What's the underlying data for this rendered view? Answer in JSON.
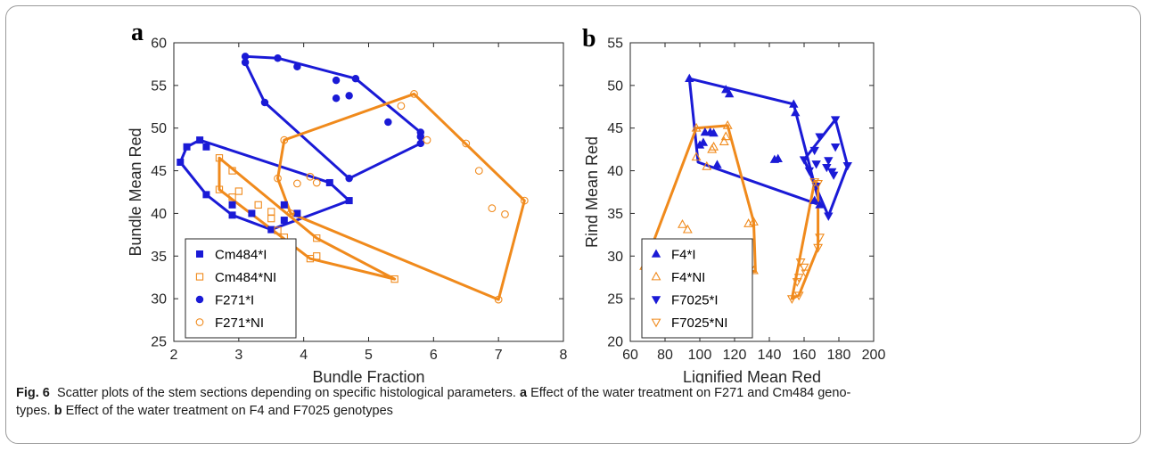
{
  "colors": {
    "blue": "#1a1ad6",
    "orange": "#f08a1c"
  },
  "panels": [
    {
      "letter": "a",
      "xlabel": "Bundle Fraction",
      "ylabel": "Bundle Mean Red",
      "xlim": [
        2,
        8
      ],
      "ylim": [
        25,
        60
      ],
      "xticks": [
        2,
        3,
        4,
        5,
        6,
        7,
        8
      ],
      "yticks": [
        25,
        30,
        35,
        40,
        45,
        50,
        55,
        60
      ],
      "legend": [
        "Cm484*I",
        "Cm484*NI",
        "F271*I",
        "F271*NI"
      ]
    },
    {
      "letter": "b",
      "xlabel": "Lignified Mean Red",
      "ylabel": "Rind Mean Red",
      "xlim": [
        60,
        200
      ],
      "ylim": [
        20,
        55
      ],
      "xticks": [
        60,
        80,
        100,
        120,
        140,
        160,
        180,
        200
      ],
      "yticks": [
        20,
        25,
        30,
        35,
        40,
        45,
        50,
        55
      ],
      "legend": [
        "F4*I",
        "F4*NI",
        "F7025*I",
        "F7025*NI"
      ]
    }
  ],
  "chart_data": [
    {
      "type": "scatter",
      "title": "",
      "xlabel": "Bundle Fraction",
      "ylabel": "Bundle Mean Red",
      "xlim": [
        2,
        8
      ],
      "ylim": [
        25,
        60
      ],
      "grid": false,
      "legend_position": "bottom-left",
      "series": [
        {
          "name": "Cm484*I",
          "color": "blue",
          "marker": "square",
          "filled": true,
          "points": [
            [
              2.1,
              46
            ],
            [
              2.2,
              47.8
            ],
            [
              2.4,
              48.6
            ],
            [
              2.5,
              47.8
            ],
            [
              2.5,
              42.2
            ],
            [
              2.9,
              39.8
            ],
            [
              2.9,
              41
            ],
            [
              3.2,
              40
            ],
            [
              3.5,
              38.1
            ],
            [
              3.7,
              39.2
            ],
            [
              3.7,
              41
            ],
            [
              3.9,
              40
            ],
            [
              4.4,
              43.6
            ],
            [
              4.7,
              41.5
            ]
          ],
          "hull": [
            [
              2.1,
              46
            ],
            [
              2.2,
              47.8
            ],
            [
              2.4,
              48.6
            ],
            [
              4.4,
              43.6
            ],
            [
              4.7,
              41.5
            ],
            [
              3.5,
              38.1
            ],
            [
              2.9,
              39.8
            ],
            [
              2.5,
              42.2
            ]
          ]
        },
        {
          "name": "Cm484*NI",
          "color": "orange",
          "marker": "square",
          "filled": false,
          "points": [
            [
              2.7,
              46.5
            ],
            [
              2.7,
              42.8
            ],
            [
              2.9,
              45
            ],
            [
              2.9,
              41.9
            ],
            [
              3.0,
              42.6
            ],
            [
              3.3,
              41
            ],
            [
              3.5,
              40.2
            ],
            [
              3.5,
              39.4
            ],
            [
              3.6,
              38
            ],
            [
              3.7,
              37.2
            ],
            [
              4.1,
              34.7
            ],
            [
              4.2,
              35
            ],
            [
              4.2,
              37.1
            ],
            [
              5.4,
              32.3
            ]
          ],
          "hull": [
            [
              2.7,
              46.5
            ],
            [
              4.2,
              37.1
            ],
            [
              5.4,
              32.3
            ],
            [
              4.1,
              34.7
            ],
            [
              2.7,
              42.8
            ]
          ]
        },
        {
          "name": "F271*I",
          "color": "blue",
          "marker": "circle",
          "filled": true,
          "points": [
            [
              3.1,
              58.4
            ],
            [
              3.1,
              57.7
            ],
            [
              3.6,
              58.2
            ],
            [
              3.9,
              57.2
            ],
            [
              3.4,
              53
            ],
            [
              4.5,
              55.6
            ],
            [
              4.8,
              55.8
            ],
            [
              4.5,
              53.5
            ],
            [
              4.7,
              53.8
            ],
            [
              5.3,
              50.7
            ],
            [
              5.8,
              49.5
            ],
            [
              5.8,
              49
            ],
            [
              5.8,
              48.2
            ],
            [
              4.7,
              44.1
            ]
          ],
          "hull": [
            [
              3.1,
              58.4
            ],
            [
              3.6,
              58.2
            ],
            [
              4.8,
              55.8
            ],
            [
              5.8,
              49.5
            ],
            [
              5.8,
              48.2
            ],
            [
              4.7,
              44.1
            ],
            [
              3.4,
              53
            ],
            [
              3.1,
              57.7
            ]
          ]
        },
        {
          "name": "F271*NI",
          "color": "orange",
          "marker": "circle",
          "filled": false,
          "points": [
            [
              5.7,
              54
            ],
            [
              5.5,
              52.6
            ],
            [
              5.9,
              48.6
            ],
            [
              6.5,
              48.2
            ],
            [
              3.7,
              48.6
            ],
            [
              3.6,
              44.1
            ],
            [
              3.9,
              43.5
            ],
            [
              4.1,
              44.3
            ],
            [
              4.2,
              43.6
            ],
            [
              3.8,
              40
            ],
            [
              6.7,
              45
            ],
            [
              6.9,
              40.6
            ],
            [
              7.1,
              39.9
            ],
            [
              7.4,
              41.5
            ],
            [
              7.0,
              29.9
            ]
          ],
          "hull": [
            [
              5.7,
              54
            ],
            [
              7.4,
              41.5
            ],
            [
              7.0,
              29.9
            ],
            [
              3.8,
              40
            ],
            [
              3.6,
              44.1
            ],
            [
              3.7,
              48.6
            ]
          ]
        }
      ]
    },
    {
      "type": "scatter",
      "title": "",
      "xlabel": "Lignified Mean Red",
      "ylabel": "Rind Mean Red",
      "xlim": [
        60,
        200
      ],
      "ylim": [
        20,
        55
      ],
      "grid": false,
      "legend_position": "bottom-left",
      "series": [
        {
          "name": "F4*I",
          "color": "blue",
          "marker": "triangle-up",
          "filled": true,
          "points": [
            [
              94,
              50.8
            ],
            [
              115,
              49.5
            ],
            [
              117,
              49
            ],
            [
              154,
              47.8
            ],
            [
              155,
              46.8
            ],
            [
              100,
              43
            ],
            [
              102,
              43.3
            ],
            [
              103,
              44.5
            ],
            [
              106,
              44.5
            ],
            [
              108,
              44.4
            ],
            [
              110,
              40.7
            ],
            [
              143,
              41.3
            ],
            [
              145,
              41.4
            ],
            [
              166,
              36.5
            ],
            [
              169,
              36
            ]
          ],
          "hull": [
            [
              94,
              50.8
            ],
            [
              154,
              47.8
            ],
            [
              169,
              36
            ],
            [
              99,
              41
            ]
          ]
        },
        {
          "name": "F4*NI",
          "color": "orange",
          "marker": "triangle-up",
          "filled": false,
          "points": [
            [
              98,
              45
            ],
            [
              116,
              45.3
            ],
            [
              98,
              41.6
            ],
            [
              104,
              40.5
            ],
            [
              107,
              42.5
            ],
            [
              108,
              42.8
            ],
            [
              114,
              43.4
            ],
            [
              115,
              44
            ],
            [
              90,
              33.7
            ],
            [
              93,
              33.1
            ],
            [
              128,
              33.8
            ],
            [
              131,
              34
            ],
            [
              131,
              28.3
            ],
            [
              68,
              28.8
            ]
          ],
          "hull": [
            [
              98,
              45
            ],
            [
              116,
              45.3
            ],
            [
              131,
              34
            ],
            [
              132,
              28.2
            ],
            [
              68,
              28.8
            ]
          ]
        },
        {
          "name": "F7025*I",
          "color": "blue",
          "marker": "triangle-down",
          "filled": true,
          "points": [
            [
              160,
              41.3
            ],
            [
              163,
              40
            ],
            [
              166,
              42.4
            ],
            [
              167,
              40.8
            ],
            [
              169,
              44
            ],
            [
              173,
              40.4
            ],
            [
              174,
              41.2
            ],
            [
              176,
              39.9
            ],
            [
              177,
              39.5
            ],
            [
              178,
              46
            ],
            [
              178,
              42.8
            ],
            [
              185,
              40.6
            ],
            [
              174,
              34.7
            ],
            [
              167,
              38.2
            ]
          ],
          "hull": [
            [
              160,
              41.3
            ],
            [
              178,
              46
            ],
            [
              185,
              40.6
            ],
            [
              174,
              34.7
            ]
          ]
        },
        {
          "name": "F7025*NI",
          "color": "orange",
          "marker": "triangle-down",
          "filled": false,
          "points": [
            [
              166,
              38.7
            ],
            [
              168,
              38.5
            ],
            [
              169,
              32.2
            ],
            [
              168,
              31
            ],
            [
              160,
              28.7
            ],
            [
              161,
              28
            ],
            [
              158,
              29.3
            ],
            [
              157,
              27.5
            ],
            [
              156,
              27
            ],
            [
              157,
              25.4
            ],
            [
              153,
              25
            ]
          ],
          "hull": [
            [
              166,
              38.7
            ],
            [
              168,
              38.5
            ],
            [
              168,
              31
            ],
            [
              157,
              25.4
            ],
            [
              153,
              25
            ]
          ]
        }
      ]
    }
  ],
  "caption": {
    "fig_label": "Fig. 6",
    "intro": "Scatter plots of the stem sections depending on specific histological parameters.",
    "a_label": "a",
    "a_text": "Effect of the water treatment on F271 and Cm484 geno-",
    "line2_start": "types.",
    "b_label": "b",
    "b_text": "Effect of the water treatment on F4 and F7025 genotypes"
  }
}
